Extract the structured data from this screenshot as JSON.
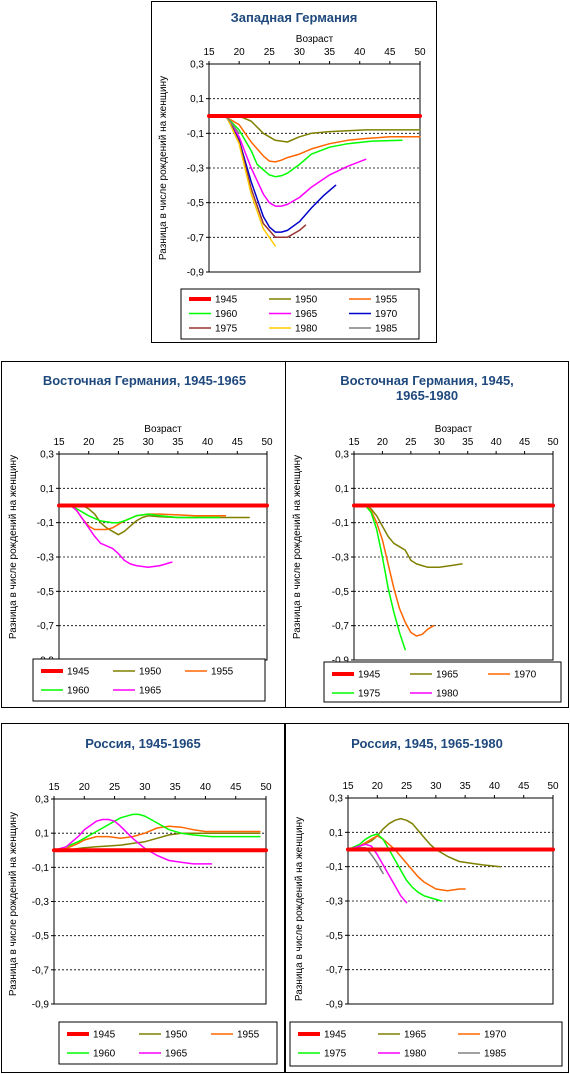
{
  "chart_data": [
    {
      "type": "line",
      "title": "Западная Германия",
      "subtitle": "",
      "xlabel": "Возраст",
      "ylabel": "Разница в числе рождений на женщину",
      "xlim": [
        15,
        50
      ],
      "ylim": [
        -0.9,
        0.3
      ],
      "xticks": [
        "15",
        "20",
        "25",
        "30",
        "35",
        "40",
        "45",
        "50"
      ],
      "yticks": [
        "0,3",
        "0,1",
        "-0,1",
        "-0,3",
        "-0,5",
        "-0,7",
        "-0,9"
      ],
      "legend_position": "bottom",
      "series": [
        {
          "name": "1945",
          "color": "#FF0000",
          "width": 4,
          "x": [
            15,
            50
          ],
          "y": [
            0,
            0
          ]
        },
        {
          "name": "1950",
          "color": "#808000",
          "width": 1.5,
          "x": [
            15,
            17,
            19,
            20,
            22,
            24,
            26,
            28,
            30,
            32,
            35,
            38,
            41,
            45,
            50
          ],
          "y": [
            0,
            0,
            0,
            0,
            -0.03,
            -0.1,
            -0.14,
            -0.15,
            -0.12,
            -0.1,
            -0.09,
            -0.085,
            -0.08,
            -0.08,
            -0.08
          ]
        },
        {
          "name": "1955",
          "color": "#FF6600",
          "width": 1.5,
          "x": [
            15,
            17,
            18,
            20,
            22,
            24,
            25,
            26,
            27,
            28,
            30,
            32,
            35,
            38,
            41,
            45,
            50
          ],
          "y": [
            0,
            0,
            -0.01,
            -0.05,
            -0.15,
            -0.23,
            -0.26,
            -0.265,
            -0.255,
            -0.24,
            -0.22,
            -0.19,
            -0.16,
            -0.14,
            -0.13,
            -0.12,
            -0.12
          ]
        },
        {
          "name": "1960",
          "color": "#00FF00",
          "width": 1.5,
          "x": [
            15,
            17,
            18,
            20,
            22,
            23,
            25,
            26,
            27,
            28,
            30,
            32,
            35,
            38,
            42,
            47
          ],
          "y": [
            0,
            0,
            -0.01,
            -0.08,
            -0.2,
            -0.28,
            -0.34,
            -0.35,
            -0.345,
            -0.33,
            -0.28,
            -0.22,
            -0.18,
            -0.16,
            -0.145,
            -0.14
          ]
        },
        {
          "name": "1965",
          "color": "#FF00FF",
          "width": 1.5,
          "x": [
            15,
            17,
            18,
            20,
            22,
            24,
            25,
            26,
            27,
            28,
            30,
            32,
            35,
            38,
            41
          ],
          "y": [
            0,
            0,
            -0.01,
            -0.12,
            -0.3,
            -0.45,
            -0.5,
            -0.52,
            -0.52,
            -0.51,
            -0.47,
            -0.41,
            -0.34,
            -0.29,
            -0.25
          ]
        },
        {
          "name": "1970",
          "color": "#0000CC",
          "width": 1.5,
          "x": [
            15,
            17,
            18,
            20,
            22,
            24,
            25,
            26,
            27,
            28,
            30,
            32,
            34,
            36
          ],
          "y": [
            0,
            0,
            -0.01,
            -0.14,
            -0.38,
            -0.58,
            -0.64,
            -0.67,
            -0.67,
            -0.66,
            -0.61,
            -0.53,
            -0.46,
            -0.4
          ]
        },
        {
          "name": "1975",
          "color": "#993333",
          "width": 1.5,
          "x": [
            15,
            17,
            18,
            20,
            22,
            24,
            26,
            28,
            30,
            31
          ],
          "y": [
            0,
            0,
            -0.01,
            -0.15,
            -0.42,
            -0.62,
            -0.7,
            -0.7,
            -0.66,
            -0.63
          ]
        },
        {
          "name": "1980",
          "color": "#FFCC00",
          "width": 1.5,
          "x": [
            15,
            17,
            18,
            20,
            22,
            24,
            26
          ],
          "y": [
            0,
            0,
            -0.01,
            -0.16,
            -0.45,
            -0.65,
            -0.75
          ]
        },
        {
          "name": "1985",
          "color": "#808080",
          "width": 1.5,
          "x": [
            15,
            17,
            18,
            20
          ],
          "y": [
            0,
            0,
            -0.01,
            -0.1
          ]
        }
      ]
    },
    {
      "type": "line",
      "title": "Восточная Германия, 1945-1965",
      "subtitle": "",
      "xlabel": "Возраст",
      "ylabel": "Разница в числе рождений на женщину",
      "xlim": [
        15,
        50
      ],
      "ylim": [
        -0.9,
        0.3
      ],
      "xticks": [
        "15",
        "20",
        "25",
        "30",
        "35",
        "40",
        "45",
        "50"
      ],
      "yticks": [
        "0,3",
        "0,1",
        "-0,1",
        "-0,3",
        "-0,5",
        "-0,7",
        "-0,9"
      ],
      "legend_position": "bottom",
      "series": [
        {
          "name": "1945",
          "color": "#FF0000",
          "width": 4,
          "x": [
            15,
            50
          ],
          "y": [
            0,
            0
          ]
        },
        {
          "name": "1950",
          "color": "#808000",
          "width": 1.5,
          "x": [
            15,
            17,
            19,
            20,
            21,
            22,
            23,
            24,
            25,
            26,
            27,
            28,
            29,
            30,
            32,
            35,
            38,
            42,
            47
          ],
          "y": [
            0,
            0,
            0,
            -0.02,
            -0.05,
            -0.1,
            -0.13,
            -0.15,
            -0.17,
            -0.15,
            -0.12,
            -0.09,
            -0.07,
            -0.06,
            -0.065,
            -0.07,
            -0.07,
            -0.07,
            -0.07
          ]
        },
        {
          "name": "1955",
          "color": "#FF6600",
          "width": 1.5,
          "x": [
            15,
            17,
            18,
            19,
            20,
            21,
            22,
            23,
            24,
            25,
            26,
            28,
            30,
            32,
            35,
            38,
            43
          ],
          "y": [
            0,
            0,
            -0.03,
            -0.08,
            -0.12,
            -0.14,
            -0.14,
            -0.14,
            -0.13,
            -0.11,
            -0.09,
            -0.06,
            -0.05,
            -0.05,
            -0.055,
            -0.06,
            -0.06
          ]
        },
        {
          "name": "1960",
          "color": "#00FF00",
          "width": 1.5,
          "x": [
            15,
            17,
            18,
            20,
            22,
            24,
            25,
            26,
            28,
            30,
            32,
            35,
            38,
            42
          ],
          "y": [
            0,
            0,
            -0.02,
            -0.06,
            -0.09,
            -0.1,
            -0.1,
            -0.09,
            -0.06,
            -0.05,
            -0.06,
            -0.07,
            -0.07,
            -0.07
          ]
        },
        {
          "name": "1965",
          "color": "#FF00FF",
          "width": 1.5,
          "x": [
            15,
            17,
            18,
            20,
            21,
            22,
            24,
            25,
            26,
            27,
            28,
            30,
            32,
            34
          ],
          "y": [
            0,
            0,
            -0.03,
            -0.13,
            -0.18,
            -0.22,
            -0.25,
            -0.28,
            -0.32,
            -0.34,
            -0.35,
            -0.36,
            -0.35,
            -0.33
          ]
        }
      ]
    },
    {
      "type": "line",
      "title": "Восточная Германия, 1945,\n1965-1980",
      "subtitle": "",
      "xlabel": "Возраст",
      "ylabel": "Разница в числе рождений на женщину",
      "xlim": [
        15,
        50
      ],
      "ylim": [
        -0.9,
        0.3
      ],
      "xticks": [
        "15",
        "20",
        "25",
        "30",
        "35",
        "40",
        "45",
        "50"
      ],
      "yticks": [
        "0,3",
        "0,1",
        "-0,1",
        "-0,3",
        "-0,5",
        "-0,7",
        "-0,9"
      ],
      "legend_position": "bottom",
      "series": [
        {
          "name": "1945",
          "color": "#FF0000",
          "width": 4,
          "x": [
            15,
            50
          ],
          "y": [
            0,
            0
          ]
        },
        {
          "name": "1965",
          "color": "#808000",
          "width": 1.5,
          "x": [
            15,
            17,
            18,
            19,
            20,
            21,
            22,
            23,
            24,
            25,
            26,
            27,
            28,
            30,
            32,
            34
          ],
          "y": [
            0,
            0,
            -0.02,
            -0.06,
            -0.12,
            -0.18,
            -0.22,
            -0.24,
            -0.26,
            -0.32,
            -0.34,
            -0.35,
            -0.36,
            -0.36,
            -0.35,
            -0.34
          ]
        },
        {
          "name": "1970",
          "color": "#FF6600",
          "width": 1.5,
          "x": [
            15,
            17,
            18,
            19,
            20,
            21,
            22,
            23,
            24,
            25,
            26,
            27,
            28,
            29
          ],
          "y": [
            0,
            0,
            -0.03,
            -0.1,
            -0.2,
            -0.34,
            -0.48,
            -0.6,
            -0.68,
            -0.74,
            -0.76,
            -0.75,
            -0.72,
            -0.7
          ]
        },
        {
          "name": "1975",
          "color": "#00FF00",
          "width": 1.5,
          "x": [
            15,
            17,
            18,
            19,
            20,
            21,
            22,
            23,
            24
          ],
          "y": [
            0,
            0,
            -0.04,
            -0.14,
            -0.3,
            -0.48,
            -0.62,
            -0.74,
            -0.84
          ]
        },
        {
          "name": "1980",
          "color": "#FF00FF",
          "width": 1.5,
          "x": [
            15,
            17
          ],
          "y": [
            0,
            0
          ]
        }
      ]
    },
    {
      "type": "line",
      "title": "Россия, 1945-1965",
      "subtitle": "",
      "xlabel": "",
      "ylabel": "Разница в числе рождений на женщину",
      "xlim": [
        15,
        50
      ],
      "ylim": [
        -0.9,
        0.3
      ],
      "xticks": [
        "15",
        "20",
        "25",
        "30",
        "35",
        "40",
        "45",
        "50"
      ],
      "yticks": [
        "0,3",
        "0,1",
        "-0,1",
        "-0,3",
        "-0,5",
        "-0,7",
        "-0,9"
      ],
      "legend_position": "bottom",
      "series": [
        {
          "name": "1945",
          "color": "#FF0000",
          "width": 4,
          "x": [
            15,
            50
          ],
          "y": [
            0,
            0
          ]
        },
        {
          "name": "1950",
          "color": "#808000",
          "width": 1.5,
          "x": [
            15,
            17,
            19,
            20,
            22,
            24,
            26,
            28,
            30,
            32,
            34,
            36,
            38,
            40,
            43,
            46,
            49
          ],
          "y": [
            0,
            0,
            0.01,
            0.015,
            0.02,
            0.025,
            0.03,
            0.04,
            0.05,
            0.07,
            0.09,
            0.1,
            0.1,
            0.1,
            0.1,
            0.1,
            0.1
          ]
        },
        {
          "name": "1955",
          "color": "#FF6600",
          "width": 1.5,
          "x": [
            15,
            17,
            19,
            20,
            22,
            24,
            26,
            28,
            30,
            32,
            34,
            36,
            38,
            40,
            43,
            46,
            49
          ],
          "y": [
            0,
            0.01,
            0.04,
            0.06,
            0.08,
            0.08,
            0.07,
            0.08,
            0.1,
            0.13,
            0.14,
            0.135,
            0.12,
            0.11,
            0.11,
            0.11,
            0.11
          ]
        },
        {
          "name": "1960",
          "color": "#00FF00",
          "width": 1.5,
          "x": [
            15,
            17,
            19,
            20,
            22,
            24,
            26,
            28,
            29,
            30,
            32,
            34,
            36,
            38,
            41,
            45,
            49
          ],
          "y": [
            0,
            0.02,
            0.05,
            0.07,
            0.11,
            0.15,
            0.19,
            0.21,
            0.21,
            0.2,
            0.16,
            0.12,
            0.1,
            0.09,
            0.08,
            0.08,
            0.08
          ]
        },
        {
          "name": "1965",
          "color": "#FF00FF",
          "width": 1.5,
          "x": [
            15,
            17,
            19,
            20,
            22,
            23,
            24,
            25,
            26,
            28,
            30,
            32,
            34,
            36,
            38,
            41
          ],
          "y": [
            0,
            0.02,
            0.08,
            0.12,
            0.17,
            0.18,
            0.18,
            0.17,
            0.14,
            0.07,
            0.01,
            -0.03,
            -0.06,
            -0.07,
            -0.08,
            -0.08
          ]
        }
      ]
    },
    {
      "type": "line",
      "title": "Россия, 1945, 1965-1980",
      "subtitle": "",
      "xlabel": "",
      "ylabel": "Разница в числе рождений на женщину",
      "xlim": [
        15,
        50
      ],
      "ylim": [
        -0.9,
        0.3
      ],
      "xticks": [
        "15",
        "20",
        "25",
        "30",
        "35",
        "40",
        "45",
        "50"
      ],
      "yticks": [
        "0,3",
        "0,1",
        "-0,1",
        "-0,3",
        "-0,5",
        "-0,7",
        "-0,9"
      ],
      "legend_position": "bottom",
      "series": [
        {
          "name": "1945",
          "color": "#FF0000",
          "width": 4,
          "x": [
            15,
            50
          ],
          "y": [
            0,
            0
          ]
        },
        {
          "name": "1965",
          "color": "#808000",
          "width": 1.5,
          "x": [
            15,
            17,
            19,
            20,
            21,
            22,
            23,
            24,
            25,
            26,
            27,
            28,
            29,
            30,
            32,
            34,
            36,
            38,
            41
          ],
          "y": [
            0,
            0.02,
            0.05,
            0.08,
            0.12,
            0.15,
            0.17,
            0.18,
            0.17,
            0.15,
            0.11,
            0.07,
            0.03,
            0,
            -0.04,
            -0.07,
            -0.08,
            -0.09,
            -0.1
          ]
        },
        {
          "name": "1970",
          "color": "#FF6600",
          "width": 1.5,
          "x": [
            15,
            17,
            19,
            20,
            21,
            22,
            23,
            24,
            25,
            26,
            27,
            28,
            30,
            32,
            34,
            35
          ],
          "y": [
            0,
            0.02,
            0.06,
            0.08,
            0.06,
            0.03,
            0,
            -0.04,
            -0.08,
            -0.12,
            -0.16,
            -0.19,
            -0.23,
            -0.24,
            -0.23,
            -0.23
          ]
        },
        {
          "name": "1975",
          "color": "#00FF00",
          "width": 1.5,
          "x": [
            15,
            17,
            18,
            19,
            20,
            21,
            22,
            23,
            24,
            25,
            26,
            27,
            28,
            29,
            31
          ],
          "y": [
            0,
            0.03,
            0.06,
            0.08,
            0.09,
            0.06,
            0,
            -0.06,
            -0.12,
            -0.18,
            -0.22,
            -0.25,
            -0.27,
            -0.28,
            -0.3
          ]
        },
        {
          "name": "1980",
          "color": "#FF00FF",
          "width": 1.5,
          "x": [
            15,
            17,
            18,
            19,
            20,
            21,
            22,
            23,
            24,
            25
          ],
          "y": [
            0,
            0.02,
            0.03,
            0.02,
            -0.03,
            -0.09,
            -0.15,
            -0.21,
            -0.27,
            -0.31
          ]
        },
        {
          "name": "1985",
          "color": "#808080",
          "width": 1.5,
          "x": [
            15,
            17,
            18,
            19,
            20,
            21
          ],
          "y": [
            0,
            0.01,
            0.01,
            -0.03,
            -0.08,
            -0.14
          ]
        }
      ]
    }
  ]
}
